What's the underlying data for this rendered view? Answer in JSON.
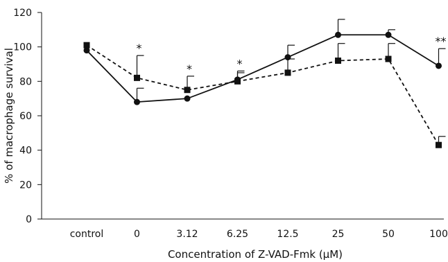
{
  "chart_data": {
    "type": "line",
    "categories": [
      "control",
      "0",
      "3.12",
      "6.25",
      "12.5",
      "25",
      "50",
      "100"
    ],
    "xlabel": "Concentration of Z-VAD-Fmk (μM)",
    "ylabel": "% of macrophage survival",
    "ylim": [
      0,
      120
    ],
    "yticks": [
      0,
      20,
      40,
      60,
      80,
      100,
      120
    ],
    "grid": false,
    "series": [
      {
        "marker": "circle",
        "line_style": "solid",
        "values": [
          98,
          68,
          70,
          81,
          94,
          107,
          107,
          89
        ],
        "error_upper": [
          0,
          8,
          0,
          4,
          7,
          9,
          3,
          10
        ]
      },
      {
        "marker": "square",
        "line_style": "dashed",
        "values": [
          101,
          82,
          75,
          80,
          85,
          92,
          93,
          43
        ],
        "error_upper": [
          0,
          13,
          8,
          6,
          8,
          10,
          9,
          5
        ]
      }
    ],
    "annotations": [
      {
        "category": "0",
        "text": "*"
      },
      {
        "category": "3.12",
        "text": "*"
      },
      {
        "category": "6.25",
        "text": "*"
      },
      {
        "category": "100",
        "text": "**"
      }
    ]
  },
  "colors": {
    "ink": "#111111",
    "background": "#ffffff"
  }
}
